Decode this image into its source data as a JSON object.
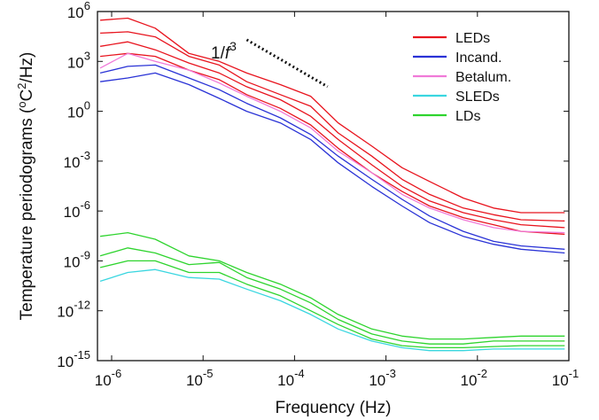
{
  "chart_data": {
    "type": "line",
    "x_scale": "log",
    "y_scale": "log",
    "xlabel": "Frequency (Hz)",
    "ylabel_parts": {
      "pre": "Temperature periodograms (",
      "sup1": "o",
      "mid": "C",
      "sup2": "2",
      "post": "/Hz)"
    },
    "xlim": [
      7e-07,
      0.1
    ],
    "ylim": [
      1e-15,
      1000000.0
    ],
    "x_ticks": [
      {
        "value": 1e-06,
        "base": "10",
        "exp": "-6"
      },
      {
        "value": 1e-05,
        "base": "10",
        "exp": "-5"
      },
      {
        "value": 0.0001,
        "base": "10",
        "exp": "-4"
      },
      {
        "value": 0.001,
        "base": "10",
        "exp": "-3"
      },
      {
        "value": 0.01,
        "base": "10",
        "exp": "-2"
      },
      {
        "value": 0.1,
        "base": "10",
        "exp": "-1"
      }
    ],
    "y_ticks": [
      {
        "value": 1000000.0,
        "base": "10",
        "exp": "6"
      },
      {
        "value": 1000.0,
        "base": "10",
        "exp": "3"
      },
      {
        "value": 1.0,
        "base": "10",
        "exp": "0"
      },
      {
        "value": 0.001,
        "base": "10",
        "exp": "-3"
      },
      {
        "value": 1e-06,
        "base": "10",
        "exp": "-6"
      },
      {
        "value": 1e-09,
        "base": "10",
        "exp": "-9"
      },
      {
        "value": 1e-12,
        "base": "10",
        "exp": "-12"
      },
      {
        "value": 1e-15,
        "base": "10",
        "exp": "-15"
      }
    ],
    "grid": false,
    "legend_position": "top-right",
    "legend": [
      {
        "label": "LEDs",
        "color": "#e8141e"
      },
      {
        "label": "Incand.",
        "color": "#2a33d6"
      },
      {
        "label": "Betalum.",
        "color": "#f07ad8"
      },
      {
        "label": "SLEDs",
        "color": "#3ad6e0"
      },
      {
        "label": "LDs",
        "color": "#2ed42e"
      }
    ],
    "annotation": {
      "text_pre": "1/",
      "text_var": "f",
      "text_exp": "3",
      "line_style": "dotted",
      "slope": -3,
      "line_x": [
        3e-05,
        0.00023
      ],
      "line_y": [
        20000.0,
        30.0
      ]
    },
    "series": [
      {
        "group": "LEDs",
        "color": "#e8141e",
        "x": [
          7.5e-07,
          1.5e-06,
          3e-06,
          7e-06,
          1.5e-05,
          3e-05,
          7e-05,
          0.00015,
          0.0003,
          0.0007,
          0.0015,
          0.003,
          0.007,
          0.015,
          0.03,
          0.09
        ],
        "y": [
          300000.0,
          400000.0,
          100000.0,
          3000.0,
          1000.0,
          200.0,
          40.0,
          8.0,
          0.2,
          0.008,
          0.0004,
          6e-05,
          6e-06,
          1.5e-06,
          8e-07,
          8e-07
        ]
      },
      {
        "group": "LEDs",
        "color": "#e8141e",
        "x": [
          7.5e-07,
          1.5e-06,
          3e-06,
          7e-06,
          1.5e-05,
          3e-05,
          7e-05,
          0.00015,
          0.0003,
          0.0007,
          0.0015,
          0.003,
          0.007,
          0.015,
          0.03,
          0.09
        ],
        "y": [
          50000.0,
          60000.0,
          30000.0,
          2000.0,
          600.0,
          60.0,
          10.0,
          2.0,
          0.05,
          0.002,
          8e-05,
          1e-05,
          1.5e-06,
          6e-07,
          3e-07,
          2.5e-07
        ]
      },
      {
        "group": "LEDs",
        "color": "#e8141e",
        "x": [
          7.5e-07,
          1.5e-06,
          3e-06,
          7e-06,
          1.5e-05,
          3e-05,
          7e-05,
          0.00015,
          0.0003,
          0.0007,
          0.0015,
          0.003,
          0.007,
          0.015,
          0.03,
          0.09
        ],
        "y": [
          8000.0,
          15000.0,
          5000.0,
          800.0,
          200.0,
          30.0,
          5.0,
          0.5,
          0.02,
          0.0006,
          3e-05,
          4e-06,
          8e-07,
          3e-07,
          1.5e-07,
          1e-07
        ]
      },
      {
        "group": "LEDs",
        "color": "#e8141e",
        "x": [
          7.5e-07,
          1.5e-06,
          3e-06,
          7e-06,
          1.5e-05,
          3e-05,
          7e-05,
          0.00015,
          0.0003,
          0.0007,
          0.0015,
          0.003,
          0.007,
          0.015,
          0.03,
          0.09
        ],
        "y": [
          2000.0,
          3000.0,
          2000.0,
          300.0,
          80.0,
          10.0,
          1.5,
          0.15,
          0.006,
          0.0002,
          1.5e-05,
          2e-06,
          4e-07,
          1.5e-07,
          6e-08,
          4e-08
        ]
      },
      {
        "group": "Incand.",
        "color": "#2a33d6",
        "x": [
          7.5e-07,
          1.5e-06,
          3e-06,
          7e-06,
          1.5e-05,
          3e-05,
          7e-05,
          0.00015,
          0.0003,
          0.0007,
          0.0015,
          0.003,
          0.007,
          0.015,
          0.03,
          0.09
        ],
        "y": [
          200.0,
          500.0,
          600.0,
          100.0,
          20.0,
          3.0,
          0.4,
          0.04,
          0.002,
          8e-05,
          5e-06,
          5e-07,
          6e-08,
          1.5e-08,
          8e-09,
          5e-09
        ]
      },
      {
        "group": "Incand.",
        "color": "#2a33d6",
        "x": [
          7.5e-07,
          1.5e-06,
          3e-06,
          7e-06,
          1.5e-05,
          3e-05,
          7e-05,
          0.00015,
          0.0003,
          0.0007,
          0.0015,
          0.003,
          0.007,
          0.015,
          0.03,
          0.09
        ],
        "y": [
          60.0,
          100.0,
          200.0,
          40.0,
          6.0,
          1.0,
          0.2,
          0.02,
          0.0008,
          3e-05,
          2e-06,
          2e-07,
          3e-08,
          1e-08,
          5e-09,
          3e-09
        ]
      },
      {
        "group": "Betalum.",
        "color": "#f07ad8",
        "x": [
          7.5e-07,
          1.5e-06,
          3e-06,
          7e-06,
          1.5e-05,
          3e-05,
          7e-05,
          0.00015,
          0.0003,
          0.0007,
          0.0015,
          0.003,
          0.007,
          0.015,
          0.03,
          0.09
        ],
        "y": [
          400.0,
          3000.0,
          1000.0,
          300.0,
          50.0,
          8.0,
          1.0,
          0.1,
          0.004,
          0.0002,
          1e-05,
          1.5e-06,
          3e-07,
          1e-07,
          6e-08,
          5e-08
        ]
      },
      {
        "group": "LDs",
        "color": "#2ed42e",
        "x": [
          7.5e-07,
          1.5e-06,
          3e-06,
          7e-06,
          1.5e-05,
          3e-05,
          7e-05,
          0.00015,
          0.0003,
          0.0007,
          0.0015,
          0.003,
          0.007,
          0.015,
          0.03,
          0.09
        ],
        "y": [
          3e-08,
          5e-08,
          2e-08,
          2e-09,
          1e-09,
          2e-10,
          4e-11,
          6e-12,
          6e-13,
          8e-14,
          3e-14,
          2e-14,
          2e-14,
          2.5e-14,
          3e-14,
          3e-14
        ]
      },
      {
        "group": "LDs",
        "color": "#2ed42e",
        "x": [
          7.5e-07,
          1.5e-06,
          3e-06,
          7e-06,
          1.5e-05,
          3e-05,
          7e-05,
          0.00015,
          0.0003,
          0.0007,
          0.0015,
          0.003,
          0.007,
          0.015,
          0.03,
          0.09
        ],
        "y": [
          2e-09,
          6e-09,
          3e-09,
          6e-10,
          8e-10,
          1e-10,
          2e-11,
          3e-12,
          3e-13,
          4e-14,
          1.5e-14,
          1e-14,
          1e-14,
          1.5e-14,
          1.5e-14,
          1.5e-14
        ]
      },
      {
        "group": "LDs",
        "color": "#2ed42e",
        "x": [
          7.5e-07,
          1.5e-06,
          3e-06,
          7e-06,
          1.5e-05,
          3e-05,
          7e-05,
          0.00015,
          0.0003,
          0.0007,
          0.0015,
          0.003,
          0.007,
          0.015,
          0.03,
          0.09
        ],
        "y": [
          4e-10,
          1e-09,
          1e-09,
          2e-10,
          2e-10,
          4e-11,
          8e-12,
          1e-12,
          1.5e-13,
          2e-14,
          8e-15,
          6e-15,
          6e-15,
          7e-15,
          8e-15,
          8e-15
        ]
      },
      {
        "group": "SLEDs",
        "color": "#3ad6e0",
        "x": [
          7.5e-07,
          1.5e-06,
          3e-06,
          7e-06,
          1.5e-05,
          3e-05,
          7e-05,
          0.00015,
          0.0003,
          0.0007,
          0.0015,
          0.003,
          0.007,
          0.015,
          0.03,
          0.09
        ],
        "y": [
          6e-11,
          2e-10,
          3e-10,
          1e-10,
          8e-11,
          2e-11,
          4e-12,
          6e-13,
          8e-14,
          1.5e-14,
          6e-15,
          4e-15,
          4e-15,
          5e-15,
          5e-15,
          5e-15
        ]
      }
    ]
  }
}
